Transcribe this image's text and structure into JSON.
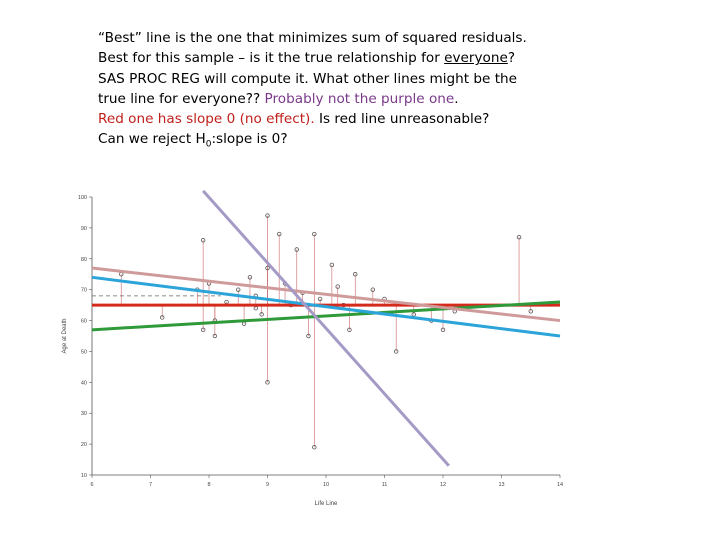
{
  "text": {
    "line1": "“Best” line is the one that minimizes sum of squared residuals.",
    "line2_a": "Best for this sample – is it the true relationship for ",
    "line2_u": "everyone",
    "line2_b": "?",
    "line3": "SAS PROC REG will compute it.  What other lines might be the",
    "line4_a": " true line for everyone?? ",
    "line4_b": "Probably not the purple one",
    "line4_c": ".",
    "line5_a": "Red one has slope 0 (no effect).",
    "line5_b": "  Is red line unreasonable?",
    "line6_a": "Can we reject H",
    "line6_sub": "0",
    "line6_b": ":slope is 0?"
  },
  "colors": {
    "red_line": "#d42a1c",
    "green_line": "#2e9a3a",
    "blue_line": "#2aa4d9",
    "pink_line": "#cf9a9a",
    "purple_line": "#a59ac6",
    "residual": "#c05050",
    "points": "#555555"
  },
  "chart_data": {
    "type": "scatter",
    "xlabel": "Life Line",
    "ylabel": "Age at Death",
    "xlim": [
      6,
      14
    ],
    "ylim": [
      10,
      100
    ],
    "xticks": [
      "6",
      "7",
      "8",
      "9",
      "10",
      "11",
      "12",
      "13",
      "14"
    ],
    "yticks": [
      "10",
      "20",
      "30",
      "40",
      "50",
      "60",
      "70",
      "80",
      "90",
      "100"
    ],
    "points": [
      {
        "x": 6.5,
        "y": 75
      },
      {
        "x": 7.2,
        "y": 61
      },
      {
        "x": 7.8,
        "y": 70
      },
      {
        "x": 7.9,
        "y": 86
      },
      {
        "x": 7.9,
        "y": 57
      },
      {
        "x": 8.0,
        "y": 72
      },
      {
        "x": 8.1,
        "y": 60
      },
      {
        "x": 8.1,
        "y": 55
      },
      {
        "x": 8.3,
        "y": 66
      },
      {
        "x": 8.5,
        "y": 70
      },
      {
        "x": 8.6,
        "y": 59
      },
      {
        "x": 8.7,
        "y": 74
      },
      {
        "x": 8.8,
        "y": 68
      },
      {
        "x": 8.8,
        "y": 64
      },
      {
        "x": 8.9,
        "y": 62
      },
      {
        "x": 9.0,
        "y": 94
      },
      {
        "x": 9.0,
        "y": 40
      },
      {
        "x": 9.0,
        "y": 77
      },
      {
        "x": 9.2,
        "y": 88
      },
      {
        "x": 9.3,
        "y": 72
      },
      {
        "x": 9.4,
        "y": 65
      },
      {
        "x": 9.5,
        "y": 83
      },
      {
        "x": 9.6,
        "y": 69
      },
      {
        "x": 9.7,
        "y": 55
      },
      {
        "x": 9.8,
        "y": 88
      },
      {
        "x": 9.8,
        "y": 19
      },
      {
        "x": 9.9,
        "y": 67
      },
      {
        "x": 10.1,
        "y": 78
      },
      {
        "x": 10.2,
        "y": 71
      },
      {
        "x": 10.3,
        "y": 65
      },
      {
        "x": 10.4,
        "y": 57
      },
      {
        "x": 10.5,
        "y": 75
      },
      {
        "x": 10.8,
        "y": 70
      },
      {
        "x": 11.0,
        "y": 67
      },
      {
        "x": 11.2,
        "y": 50
      },
      {
        "x": 11.5,
        "y": 62
      },
      {
        "x": 11.8,
        "y": 60
      },
      {
        "x": 12.0,
        "y": 57
      },
      {
        "x": 12.2,
        "y": 63
      },
      {
        "x": 13.3,
        "y": 87
      },
      {
        "x": 13.5,
        "y": 63
      }
    ],
    "lines": [
      {
        "color": "red",
        "x": [
          6,
          14
        ],
        "y": [
          65,
          65
        ]
      },
      {
        "color": "green",
        "x": [
          6,
          14
        ],
        "y": [
          57,
          66
        ]
      },
      {
        "color": "blue",
        "x": [
          6,
          14
        ],
        "y": [
          74,
          55
        ]
      },
      {
        "color": "pink",
        "x": [
          6,
          14
        ],
        "y": [
          77,
          60
        ]
      },
      {
        "color": "purple",
        "x": [
          7.9,
          12.1
        ],
        "y": [
          102,
          13
        ]
      }
    ],
    "grid": false
  }
}
